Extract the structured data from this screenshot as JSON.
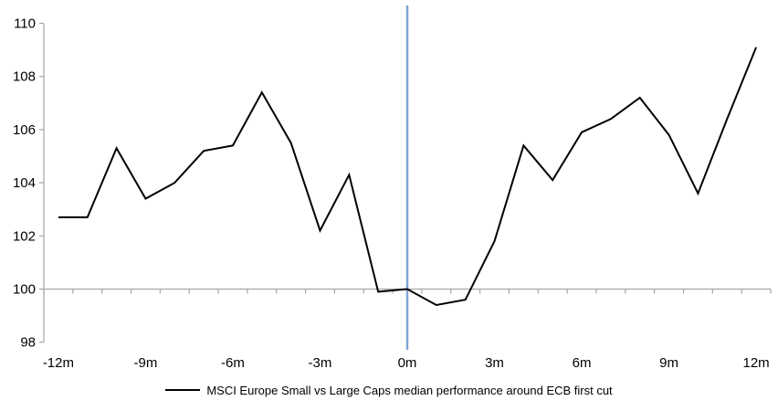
{
  "chart_data": {
    "type": "line",
    "title": "",
    "legend": "MSCI Europe Small vs Large Caps median performance around ECB first cut",
    "legend_position": "bottom",
    "x": [
      "-12m",
      "-11m",
      "-10m",
      "-9m",
      "-8m",
      "-7m",
      "-6m",
      "-5m",
      "-4m",
      "-3m",
      "-2m",
      "-1m",
      "0m",
      "1m",
      "2m",
      "3m",
      "4m",
      "5m",
      "6m",
      "7m",
      "8m",
      "9m",
      "10m",
      "11m",
      "12m"
    ],
    "series": [
      {
        "name": "MSCI Europe Small vs Large Caps median performance around ECB first cut",
        "values": [
          102.7,
          102.7,
          105.3,
          103.4,
          104.0,
          105.2,
          105.4,
          107.4,
          105.5,
          102.2,
          104.3,
          99.9,
          100.0,
          99.4,
          99.6,
          101.8,
          105.4,
          104.1,
          105.9,
          106.4,
          107.2,
          105.8,
          103.6,
          106.4,
          109.1
        ]
      }
    ],
    "x_tick_labels": [
      "-12m",
      "-9m",
      "-6m",
      "-3m",
      "0m",
      "3m",
      "6m",
      "9m",
      "12m"
    ],
    "y_ticks": [
      98,
      100,
      102,
      104,
      106,
      108,
      110
    ],
    "ylim": [
      98,
      110
    ],
    "xlabel": "",
    "ylabel": "",
    "grid": "off",
    "baseline_value": 100,
    "event_line_at": "0m",
    "colors": {
      "series_line": "#000000",
      "event_line": "#7EA6D2",
      "axis_line": "#A6A6A6",
      "tick_mark": "#A6A6A6",
      "label_text": "#000000",
      "background": "#FFFFFF"
    }
  }
}
